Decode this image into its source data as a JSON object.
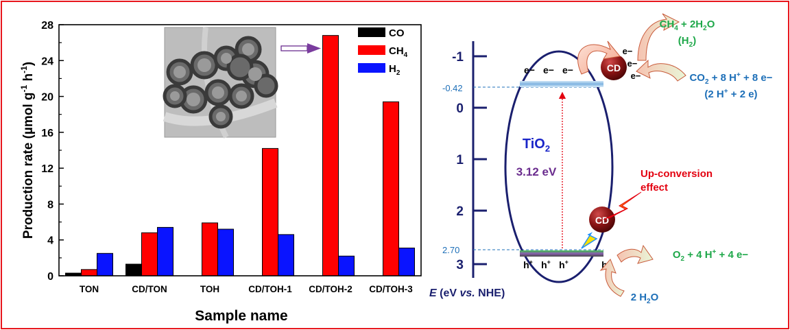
{
  "chart_data": {
    "type": "bar",
    "categories": [
      "TON",
      "CD/TON",
      "TOH",
      "CD/TOH-1",
      "CD/TOH-2",
      "CD/TOH-3"
    ],
    "series": [
      {
        "name": "CO",
        "values": [
          0.3,
          1.3,
          0,
          0,
          0,
          0
        ]
      },
      {
        "name": "CH4",
        "values": [
          0.7,
          4.8,
          5.9,
          14.2,
          26.8,
          19.4
        ]
      },
      {
        "name": "H2",
        "values": [
          2.5,
          5.4,
          5.2,
          4.6,
          2.2,
          3.1
        ]
      }
    ],
    "series_colors": [
      "#000000",
      "#ff0000",
      "#0a14ff"
    ],
    "xlabel": "Sample name",
    "ylabel": "Production rate (µmol g⁻¹ h⁻¹)",
    "ylim": [
      0,
      28
    ],
    "yticks": [
      0,
      4,
      8,
      12,
      16,
      20,
      24,
      28
    ],
    "legend_position": "top-right",
    "grid": false
  },
  "diagram": {
    "axis_label": {
      "e": "E",
      "open": " (eV ",
      "vs": "vs.",
      "close": " NHE)"
    },
    "axis_ticks": [
      "-1",
      "0",
      "1",
      "2",
      "3"
    ],
    "cb_value": "-0.42",
    "vb_value": "2.70",
    "material": "TiO",
    "material_sub": "2",
    "band_gap": "3.12 eV",
    "cd_label": "CD",
    "electron": "e−",
    "hole": "h",
    "hole_sup": "+",
    "upconversion_line1": "Up-conversion",
    "upconversion_line2": "effect",
    "ch4_product": "CH",
    "ch4_sub": "4",
    "ch4_rest": " + 2H",
    "h2o_sub": "2",
    "ch4_tail": "O",
    "h2_product_open": "(H",
    "h2_product_sub": "2",
    "h2_product_close": ")",
    "co2_reaction": "CO",
    "co2_sub": "2",
    "co2_mid": " + 8 H",
    "co2_sup": "+",
    "co2_end": " + 8 e−",
    "h_reaction_open": "(2 H",
    "h_reaction_sup": "+",
    "h_reaction_close": " + 2 e)",
    "o2_reaction": "O",
    "o2_sub": "2",
    "o2_mid": " + 4 H",
    "o2_sup": "+",
    "o2_end": " + 4 e−",
    "water": "2 H",
    "water_sub": "2",
    "water_end": "O"
  },
  "colors": {
    "frame": "#e8161d",
    "navy": "#1a1f6e",
    "cyan_text": "#1d6fb8",
    "green_text": "#1fa84a",
    "purple_text": "#6a2c8e",
    "red_text": "#e3000f",
    "cd_ball": "#8a1414"
  }
}
